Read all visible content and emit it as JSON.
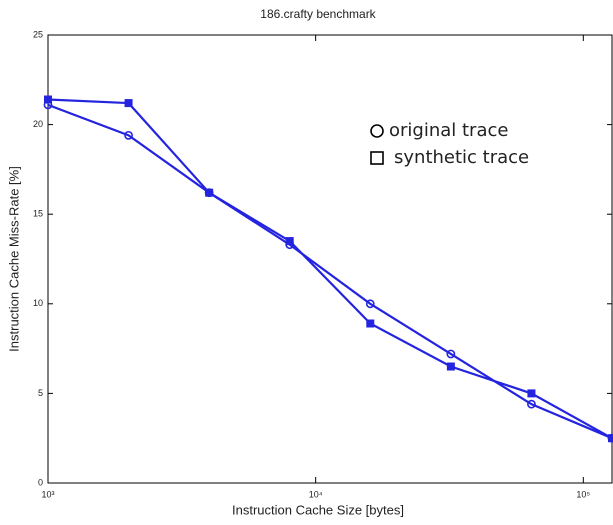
{
  "chart_data": {
    "type": "line",
    "title": "186.crafty benchmark",
    "xlabel": "Instruction Cache Size [bytes]",
    "ylabel": "Instruction Cache Miss-Rate [%]",
    "x": [
      1000,
      2000,
      4000,
      8000,
      16000,
      32000,
      64000,
      128000
    ],
    "series": [
      {
        "name": "original trace",
        "marker": "circle",
        "color": "#2424e0",
        "values": [
          21.1,
          19.4,
          16.2,
          13.3,
          10.0,
          7.2,
          4.4,
          2.5
        ]
      },
      {
        "name": "synthetic trace",
        "marker": "square",
        "color": "#2424e0",
        "values": [
          21.4,
          21.2,
          16.2,
          13.5,
          8.9,
          6.5,
          5.0,
          2.5
        ]
      }
    ],
    "xscale": "log",
    "xlim": [
      1000,
      128000
    ],
    "xticks": [
      {
        "value": 1000,
        "label": "10³"
      },
      {
        "value": 10000,
        "label": "10⁴"
      },
      {
        "value": 100000,
        "label": "10⁵"
      }
    ],
    "ylim": [
      0,
      25
    ],
    "yticks": [
      0,
      5,
      10,
      15,
      20,
      25
    ],
    "legend": "upper right"
  }
}
